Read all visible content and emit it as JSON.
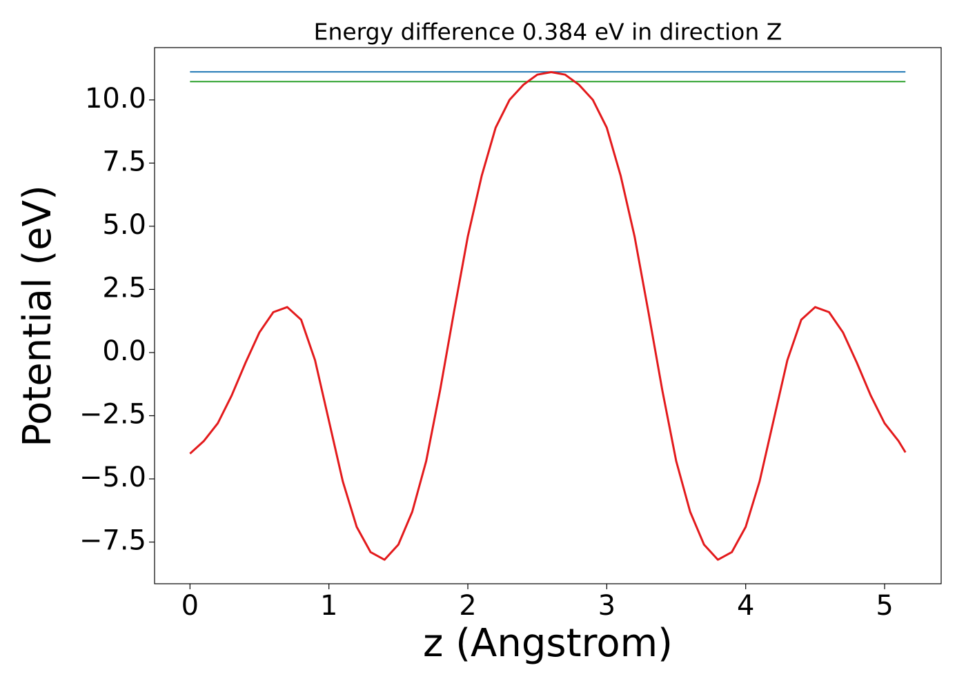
{
  "chart_data": {
    "type": "line",
    "title": "Energy difference 0.384 eV in direction Z",
    "x_label": "z (Angstrom)",
    "y_label": "Potential (eV)",
    "xlim": [
      -0.255,
      5.407
    ],
    "ylim": [
      -9.15,
      12.07
    ],
    "xticks": [
      0,
      1,
      2,
      3,
      4,
      5
    ],
    "yticks": [
      {
        "value": 10,
        "label": "10.0"
      },
      {
        "value": 7.5,
        "label": "7.5"
      },
      {
        "value": 5,
        "label": "5.0"
      },
      {
        "value": 2.5,
        "label": "2.5"
      },
      {
        "value": 0,
        "label": "0.0"
      },
      {
        "value": -2.5,
        "label": "−2.5"
      },
      {
        "value": -5,
        "label": "−5.0"
      },
      {
        "value": -7.5,
        "label": "−7.5"
      }
    ],
    "series": [
      {
        "color": "#1f77b4",
        "x": [
          0,
          5.15
        ],
        "values": [
          11.11,
          11.11
        ]
      },
      {
        "color": "#2ca02c",
        "x": [
          0,
          5.15
        ],
        "values": [
          10.726,
          10.726
        ]
      },
      {
        "color": "#e31a1c",
        "x": [
          0,
          0.1,
          0.2,
          0.3,
          0.4,
          0.5,
          0.6,
          0.7,
          0.8,
          0.9,
          1.0,
          1.1,
          1.2,
          1.3,
          1.4,
          1.5,
          1.6,
          1.7,
          1.8,
          1.9,
          2.0,
          2.1,
          2.2,
          2.3,
          2.4,
          2.5,
          2.6,
          2.7,
          2.8,
          2.9,
          3.0,
          3.1,
          3.2,
          3.3,
          3.4,
          3.5,
          3.6,
          3.7,
          3.8,
          3.9,
          4.0,
          4.1,
          4.2,
          4.3,
          4.4,
          4.5,
          4.6,
          4.7,
          4.8,
          4.9,
          5.0,
          5.1,
          5.15
        ],
        "values": [
          -4.0,
          -3.5,
          -2.8,
          -1.7,
          -0.4,
          0.8,
          1.6,
          1.8,
          1.3,
          -0.3,
          -2.7,
          -5.1,
          -6.9,
          -7.9,
          -8.2,
          -7.6,
          -6.3,
          -4.3,
          -1.5,
          1.6,
          4.6,
          7.0,
          8.9,
          10.0,
          10.6,
          11.0,
          11.1,
          11.0,
          10.6,
          10.0,
          8.9,
          7.0,
          4.6,
          1.6,
          -1.5,
          -4.3,
          -6.3,
          -7.6,
          -8.2,
          -7.9,
          -6.9,
          -5.1,
          -2.7,
          -0.3,
          1.3,
          1.8,
          1.6,
          0.8,
          -0.4,
          -1.7,
          -2.8,
          -3.5,
          -3.95
        ]
      }
    ]
  }
}
